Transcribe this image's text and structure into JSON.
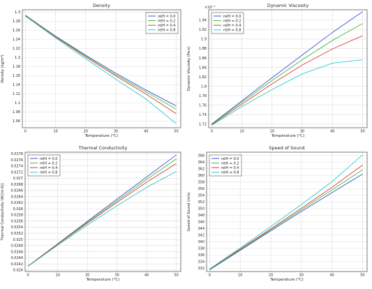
{
  "chart_data": [
    {
      "type": "line",
      "title": "Density",
      "xlabel": "Temperature (°C)",
      "ylabel": "Density (kg/m³)",
      "xlim": [
        -1,
        51.5
      ],
      "ylim": [
        1.045,
        1.305
      ],
      "x_ticks": [
        0,
        10,
        20,
        30,
        40,
        50
      ],
      "y_ticks": [
        1.06,
        1.08,
        1.1,
        1.12,
        1.14,
        1.16,
        1.18,
        1.2,
        1.22,
        1.24,
        1.26,
        1.28,
        1.3
      ],
      "y_tick_labels": [
        "1.06",
        "1.08",
        "1.1",
        "1.12",
        "1.14",
        "1.16",
        "1.18",
        "1.2",
        "1.22",
        "1.24",
        "1.26",
        "1.28",
        "1.3"
      ],
      "multiplier": "",
      "grid": true,
      "legend_position": "top-right",
      "x": [
        0,
        10,
        20,
        30,
        40,
        50
      ],
      "series": [
        {
          "name": "relH = 0.0",
          "color": "#3c4fd6",
          "values": [
            1.293,
            1.247,
            1.205,
            1.165,
            1.128,
            1.093
          ]
        },
        {
          "name": "relH = 0.2",
          "color": "#3dbb3d",
          "values": [
            1.293,
            1.246,
            1.203,
            1.162,
            1.124,
            1.086
          ]
        },
        {
          "name": "relH = 0.4",
          "color": "#d93a3a",
          "values": [
            1.292,
            1.245,
            1.201,
            1.159,
            1.119,
            1.076
          ]
        },
        {
          "name": "relH = 0.8",
          "color": "#2ec8cf",
          "values": [
            1.291,
            1.243,
            1.197,
            1.152,
            1.108,
            1.054
          ]
        }
      ]
    },
    {
      "type": "line",
      "title": "Dynamic Viscosity",
      "xlabel": "Temperature (°C)",
      "ylabel": "Dynamic Viscosity (Pa·s)",
      "xlim": [
        -1,
        51.5
      ],
      "ylim": [
        1.712,
        1.962
      ],
      "x_ticks": [
        0,
        10,
        20,
        30,
        40,
        50
      ],
      "y_ticks": [
        1.72,
        1.74,
        1.76,
        1.78,
        1.8,
        1.82,
        1.84,
        1.86,
        1.88,
        1.9,
        1.92,
        1.94
      ],
      "y_tick_labels": [
        "1.72",
        "1.74",
        "1.76",
        "1.78",
        "1.8",
        "1.82",
        "1.84",
        "1.86",
        "1.88",
        "1.9",
        "1.92",
        "1.94"
      ],
      "multiplier": "×10⁻⁵",
      "grid": true,
      "legend_position": "top-left",
      "x": [
        0,
        10,
        20,
        30,
        40,
        50
      ],
      "series": [
        {
          "name": "relH = 0.0",
          "color": "#3c4fd6",
          "values": [
            1.72,
            1.769,
            1.818,
            1.866,
            1.914,
            1.958
          ]
        },
        {
          "name": "relH = 0.2",
          "color": "#3dbb3d",
          "values": [
            1.719,
            1.766,
            1.812,
            1.856,
            1.897,
            1.933
          ]
        },
        {
          "name": "relH = 0.4",
          "color": "#d93a3a",
          "values": [
            1.718,
            1.762,
            1.805,
            1.845,
            1.879,
            1.907
          ]
        },
        {
          "name": "relH = 0.8",
          "color": "#2ec8cf",
          "values": [
            1.717,
            1.757,
            1.793,
            1.826,
            1.849,
            1.856
          ]
        }
      ]
    },
    {
      "type": "line",
      "title": "Thermal Conductivity",
      "xlabel": "Temperature (°C)",
      "ylabel": "Thermal Conductivity (W/(m·K))",
      "xlim": [
        -1,
        51.5
      ],
      "ylim": [
        0.02395,
        0.02785
      ],
      "x_ticks": [
        0,
        10,
        20,
        30,
        40,
        50
      ],
      "y_ticks": [
        0.024,
        0.0242,
        0.0244,
        0.0246,
        0.0248,
        0.025,
        0.0252,
        0.0254,
        0.0256,
        0.0258,
        0.026,
        0.0262,
        0.0264,
        0.0266,
        0.0268,
        0.027,
        0.0272,
        0.0274,
        0.0276,
        0.0278
      ],
      "y_tick_labels": [
        "0.024",
        "0.0242",
        "0.0244",
        "0.0246",
        "0.0248",
        "0.025",
        "0.0252",
        "0.0254",
        "0.0256",
        "0.0258",
        "0.026",
        "0.0262",
        "0.0264",
        "0.0266",
        "0.0268",
        "0.027",
        "0.0272",
        "0.0274",
        "0.0276",
        "0.0278"
      ],
      "multiplier": "",
      "grid": true,
      "legend_position": "top-left",
      "x": [
        0,
        10,
        20,
        30,
        40,
        50
      ],
      "series": [
        {
          "name": "relH = 0.0",
          "color": "#3c4fd6",
          "values": [
            0.02413,
            0.02486,
            0.02559,
            0.02632,
            0.02704,
            0.02776
          ]
        },
        {
          "name": "relH = 0.2",
          "color": "#3dbb3d",
          "values": [
            0.02413,
            0.02485,
            0.02556,
            0.02626,
            0.02696,
            0.02763
          ]
        },
        {
          "name": "relH = 0.4",
          "color": "#d93a3a",
          "values": [
            0.02413,
            0.02484,
            0.02553,
            0.02621,
            0.02687,
            0.02748
          ]
        },
        {
          "name": "relH = 0.8",
          "color": "#2ec8cf",
          "values": [
            0.02412,
            0.02481,
            0.02547,
            0.0261,
            0.0267,
            0.02722
          ]
        }
      ]
    },
    {
      "type": "line",
      "title": "Speed of Sound",
      "xlabel": "Temperature (°C)",
      "ylabel": "Speed of Sound (m/s)",
      "xlim": [
        -1,
        51.5
      ],
      "ylim": [
        331,
        367
      ],
      "x_ticks": [
        0,
        10,
        20,
        30,
        40,
        50
      ],
      "y_ticks": [
        332,
        334,
        336,
        338,
        340,
        342,
        344,
        346,
        348,
        350,
        352,
        354,
        356,
        358,
        360,
        362,
        364,
        366
      ],
      "y_tick_labels": [
        "332",
        "334",
        "336",
        "338",
        "340",
        "342",
        "344",
        "346",
        "348",
        "350",
        "352",
        "354",
        "356",
        "358",
        "360",
        "362",
        "364",
        "366"
      ],
      "multiplier": "",
      "grid": true,
      "legend_position": "top-left",
      "x": [
        0,
        10,
        20,
        30,
        40,
        50
      ],
      "series": [
        {
          "name": "relH = 0.0",
          "color": "#3c4fd6",
          "values": [
            331.5,
            337.4,
            343.3,
            349.1,
            354.8,
            360.4
          ]
        },
        {
          "name": "relH = 0.2",
          "color": "#3dbb3d",
          "values": [
            331.6,
            337.6,
            343.6,
            349.6,
            355.6,
            361.7
          ]
        },
        {
          "name": "relH = 0.4",
          "color": "#d93a3a",
          "values": [
            331.7,
            337.8,
            343.9,
            350.1,
            356.4,
            363.1
          ]
        },
        {
          "name": "relH = 0.8",
          "color": "#2ec8cf",
          "values": [
            331.8,
            338.1,
            344.6,
            351.2,
            358.1,
            366.2
          ]
        }
      ]
    }
  ]
}
